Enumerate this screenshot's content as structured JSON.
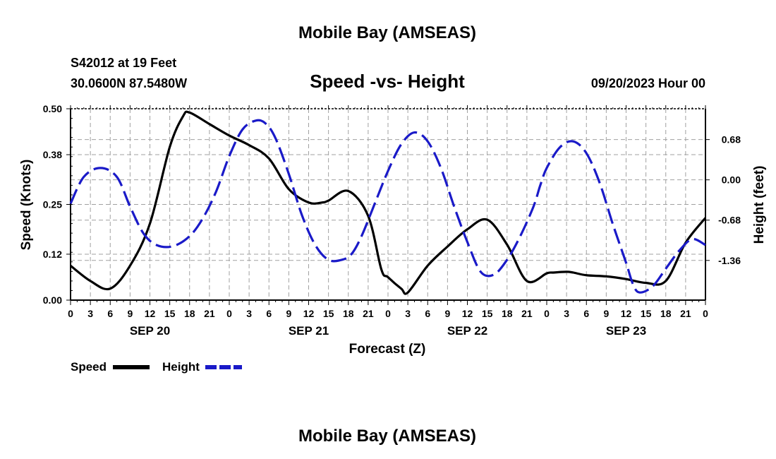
{
  "page": {
    "title_top": "Mobile Bay (AMSEAS)",
    "title_bottom": "Mobile Bay (AMSEAS)",
    "station_line": "S42012 at 19 Feet",
    "coords_line": "30.0600N  87.5480W",
    "chart_title": "Speed -vs- Height",
    "date_line": "09/20/2023 Hour 00"
  },
  "chart_data": {
    "type": "line",
    "title": "Speed -vs- Height",
    "xlabel": "Forecast (Z)",
    "ylabel": "Speed (Knots)",
    "y2label": "Height (feet)",
    "xlim": [
      0,
      96
    ],
    "ylim": [
      0,
      0.5
    ],
    "y2lim": [
      -2.03,
      1.2
    ],
    "x_ticks": [
      0,
      3,
      6,
      9,
      12,
      15,
      18,
      21,
      24,
      27,
      30,
      33,
      36,
      39,
      42,
      45,
      48,
      51,
      54,
      57,
      60,
      63,
      66,
      69,
      72,
      75,
      78,
      81,
      84,
      87,
      90,
      93,
      96
    ],
    "x_tick_labels": [
      "0",
      "3",
      "6",
      "9",
      "12",
      "15",
      "18",
      "21",
      "0",
      "3",
      "6",
      "9",
      "12",
      "15",
      "18",
      "21",
      "0",
      "3",
      "6",
      "9",
      "12",
      "15",
      "18",
      "21",
      "0",
      "3",
      "6",
      "9",
      "12",
      "15",
      "18",
      "21",
      "0"
    ],
    "date_labels": [
      {
        "x": 12,
        "label": "SEP 20"
      },
      {
        "x": 36,
        "label": "SEP 21"
      },
      {
        "x": 60,
        "label": "SEP 22"
      },
      {
        "x": 84,
        "label": "SEP 23"
      }
    ],
    "y_ticks": [
      0.0,
      0.12,
      0.25,
      0.38,
      0.5
    ],
    "y_tick_labels": [
      "0.00",
      "0.12",
      "0.25",
      "0.38",
      "0.50"
    ],
    "y2_ticks": [
      0.68,
      0.0,
      -0.68,
      -1.36
    ],
    "y2_tick_labels": [
      "0.68",
      "0.00",
      "-0.68",
      "-1.36"
    ],
    "grid": true,
    "series": [
      {
        "name": "Speed",
        "color": "#000000",
        "axis": "left",
        "dash": "solid",
        "x": [
          0,
          3,
          6,
          9,
          12,
          15,
          17,
          18,
          21,
          24,
          27,
          30,
          33,
          36,
          38,
          39,
          42,
          45,
          47,
          48,
          50,
          51,
          54,
          57,
          60,
          63,
          66,
          69,
          72,
          73,
          75,
          76,
          78,
          81,
          84,
          87,
          90,
          93,
          96
        ],
        "y": [
          0.09,
          0.05,
          0.03,
          0.09,
          0.2,
          0.4,
          0.48,
          0.49,
          0.46,
          0.43,
          0.405,
          0.37,
          0.29,
          0.255,
          0.255,
          0.26,
          0.285,
          0.22,
          0.08,
          0.06,
          0.03,
          0.02,
          0.09,
          0.14,
          0.185,
          0.21,
          0.145,
          0.05,
          0.07,
          0.072,
          0.074,
          0.072,
          0.065,
          0.062,
          0.055,
          0.045,
          0.05,
          0.15,
          0.215
        ]
      },
      {
        "name": "Height",
        "color": "#1a1ac8",
        "axis": "right",
        "dash": "dashed",
        "x": [
          0,
          2,
          4.5,
          7,
          9,
          11,
          13,
          15.5,
          18,
          20,
          22,
          24,
          26,
          28,
          29.5,
          31,
          33,
          35,
          37,
          39,
          41,
          42.5,
          44,
          46,
          48,
          50,
          52,
          54,
          56,
          58,
          60,
          62,
          64,
          66,
          68,
          70,
          71,
          72,
          74,
          76,
          78,
          80,
          82,
          84,
          85,
          86,
          88,
          90,
          92,
          94,
          96
        ],
        "y": [
          -0.4,
          0.05,
          0.2,
          0.05,
          -0.45,
          -0.9,
          -1.1,
          -1.12,
          -0.95,
          -0.65,
          -0.2,
          0.4,
          0.85,
          1.0,
          0.95,
          0.7,
          0.1,
          -0.6,
          -1.1,
          -1.35,
          -1.35,
          -1.25,
          -0.95,
          -0.4,
          0.15,
          0.6,
          0.8,
          0.65,
          0.2,
          -0.45,
          -1.05,
          -1.55,
          -1.6,
          -1.35,
          -0.95,
          -0.45,
          -0.1,
          0.2,
          0.55,
          0.65,
          0.45,
          -0.05,
          -0.75,
          -1.4,
          -1.75,
          -1.9,
          -1.8,
          -1.5,
          -1.2,
          -1.0,
          -1.1
        ]
      }
    ]
  },
  "legend": {
    "speed_label": "Speed",
    "height_label": "Height"
  }
}
